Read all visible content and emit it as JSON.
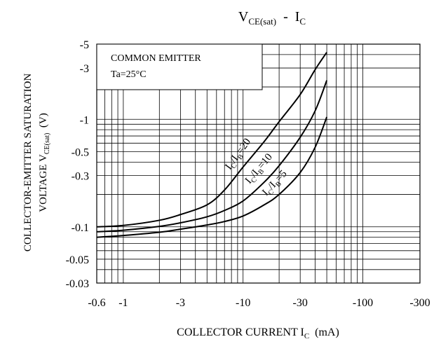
{
  "chart_data": {
    "type": "line",
    "title": {
      "main": "V",
      "main_sub": "CE(sat)",
      "sep": "  -  ",
      "i": "I",
      "i_sub": "C"
    },
    "xlabel": {
      "text": "COLLECTOR CURRENT I",
      "sub": "C",
      "unit": "  (mA)"
    },
    "ylabel": {
      "line1": "COLLECTOR-EMITTER SATURATION",
      "line2": "VOLTAGE V",
      "line2_sub": "CE(sat)",
      "line2_unit": "  (V)"
    },
    "x_scale": "log",
    "y_scale": "log",
    "xlim": [
      -0.6,
      -300
    ],
    "ylim": [
      -0.03,
      -5
    ],
    "x_ticks": [
      {
        "value": -0.6,
        "label": "-0.6"
      },
      {
        "value": -1,
        "label": "-1"
      },
      {
        "value": -3,
        "label": "-3"
      },
      {
        "value": -10,
        "label": "-10"
      },
      {
        "value": -30,
        "label": "-30"
      },
      {
        "value": -100,
        "label": "-100"
      },
      {
        "value": -300,
        "label": "-300"
      }
    ],
    "y_ticks": [
      {
        "value": -0.03,
        "label": "-0.03"
      },
      {
        "value": -0.05,
        "label": "-0.05"
      },
      {
        "value": -0.1,
        "label": "-0.1"
      },
      {
        "value": -0.3,
        "label": "-0.3"
      },
      {
        "value": -0.5,
        "label": "-0.5"
      },
      {
        "value": -1,
        "label": "-1"
      },
      {
        "value": -3,
        "label": "-3"
      },
      {
        "value": -5,
        "label": "-5"
      }
    ],
    "grid": true,
    "annotation_box": {
      "line1": "COMMON EMITTER",
      "line2": "Ta=25°C"
    },
    "series": [
      {
        "name": "IC/IB=20",
        "label": {
          "a": "I",
          "a_sub": "C",
          "b": "/I",
          "b_sub": "B",
          "c": "=20"
        },
        "x": [
          -0.6,
          -1,
          -2,
          -3,
          -5,
          -7,
          -10,
          -15,
          -20,
          -30,
          -40,
          -50
        ],
        "y": [
          -0.1,
          -0.103,
          -0.115,
          -0.13,
          -0.16,
          -0.22,
          -0.36,
          -0.62,
          -0.95,
          -1.7,
          -2.9,
          -4.2
        ]
      },
      {
        "name": "IC/IB=10",
        "label": {
          "a": "I",
          "a_sub": "C",
          "b": "/I",
          "b_sub": "B",
          "c": "=10"
        },
        "x": [
          -0.6,
          -1,
          -2,
          -3,
          -5,
          -7,
          -10,
          -15,
          -20,
          -30,
          -40,
          -50
        ],
        "y": [
          -0.09,
          -0.093,
          -0.101,
          -0.109,
          -0.124,
          -0.142,
          -0.174,
          -0.26,
          -0.37,
          -0.68,
          -1.2,
          -2.3
        ]
      },
      {
        "name": "IC/IB=5",
        "label": {
          "a": "I",
          "a_sub": "C",
          "b": "/I",
          "b_sub": "B",
          "c": "=5"
        },
        "x": [
          -0.6,
          -1,
          -2,
          -3,
          -5,
          -7,
          -10,
          -15,
          -20,
          -30,
          -40,
          -50
        ],
        "y": [
          -0.08,
          -0.083,
          -0.089,
          -0.095,
          -0.104,
          -0.112,
          -0.126,
          -0.16,
          -0.2,
          -0.32,
          -0.55,
          -1.05
        ]
      }
    ]
  }
}
